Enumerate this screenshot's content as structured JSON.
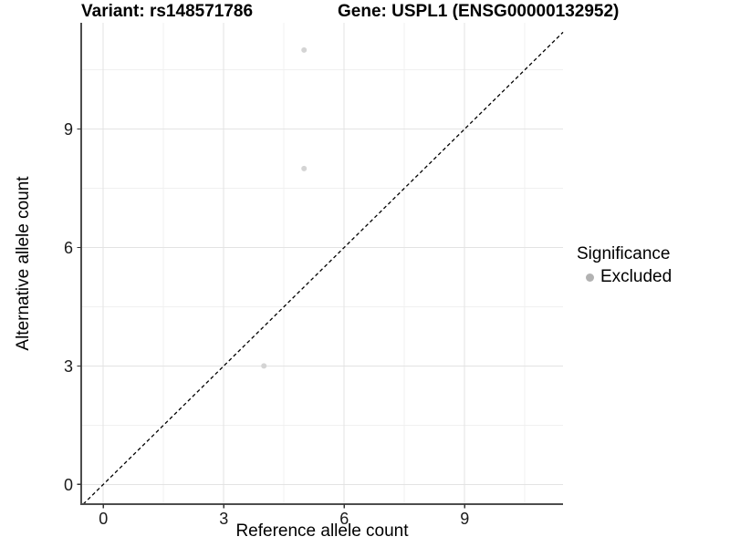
{
  "chart_data": {
    "type": "scatter",
    "title_left": "Variant: rs148571786",
    "title_right": "Gene: USPL1 (ENSG00000132952)",
    "xlabel": "Reference allele count",
    "ylabel": "Alternative allele count",
    "xlim": [
      -0.55,
      11.45
    ],
    "ylim": [
      -0.5,
      11.69
    ],
    "xticks": [
      0,
      3,
      6,
      9
    ],
    "yticks": [
      0,
      3,
      6,
      9
    ],
    "xminor": [
      1.5,
      4.5,
      7.5,
      10.5
    ],
    "yminor": [
      1.5,
      4.5,
      7.5,
      10.5
    ],
    "grid": true,
    "legend_position": "right",
    "identity_line": {
      "equation": "y = x",
      "style": "dashed",
      "color": "#000000"
    },
    "series": [
      {
        "name": "Excluded",
        "point_color": "#d4d4d4",
        "points": [
          {
            "x": 4,
            "y": 3
          },
          {
            "x": 5,
            "y": 8
          },
          {
            "x": 5,
            "y": 11
          }
        ]
      }
    ],
    "legend": {
      "title": "Significance",
      "items": [
        {
          "label": "Excluded",
          "marker": "dot",
          "color": "#b2b2b2"
        }
      ]
    },
    "colors": {
      "grid_major": "#e3e3e3",
      "grid_minor": "#f0f0f0",
      "axis_line": "#4d4d4d",
      "tick_mark": "#333333"
    }
  }
}
